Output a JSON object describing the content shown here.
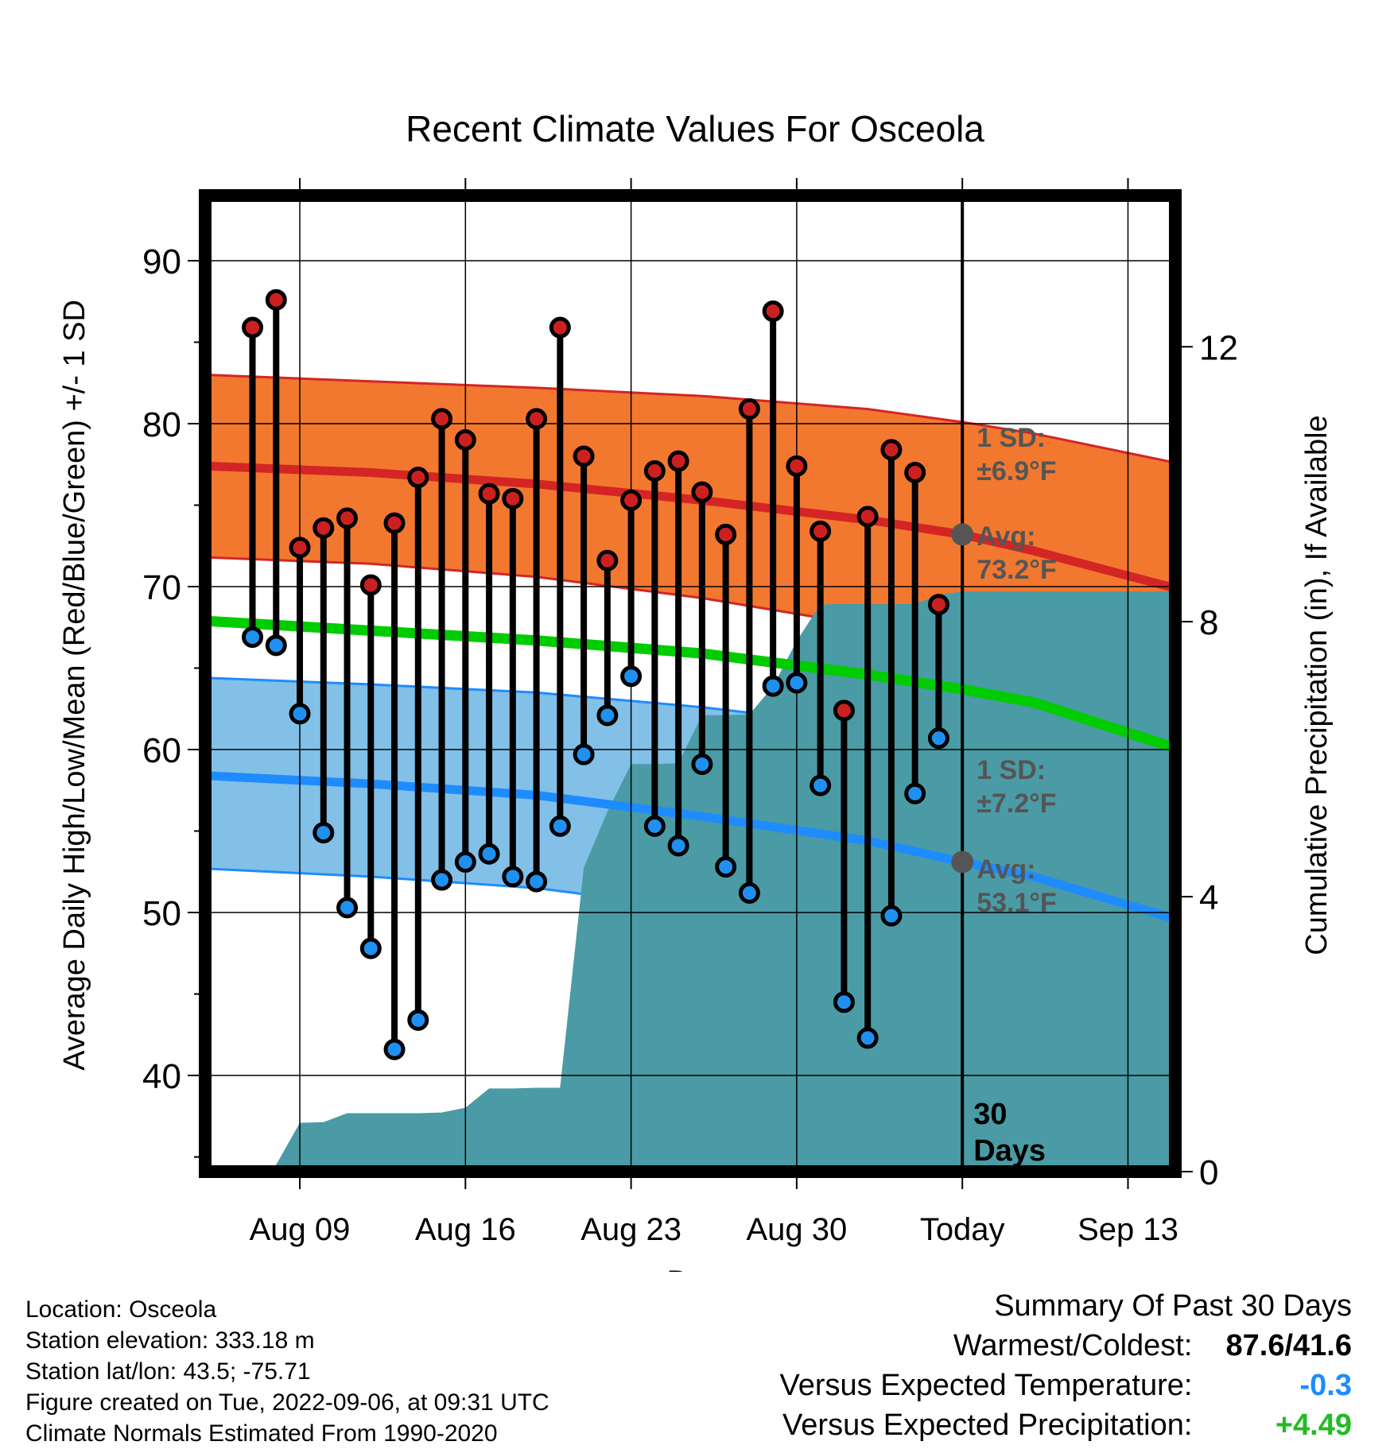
{
  "chart_data": {
    "type": "line",
    "title": "Recent Climate Values For Osceola",
    "xlabel": "Day",
    "ylabel": "Average Daily High/Low/Mean (Red/Blue/Green) +/- 1 SD",
    "y2label": "Cumulative Precipitation (in), If Available",
    "ylim": [
      34.1,
      94.0
    ],
    "y2lim": [
      0,
      14.2
    ],
    "y_ticks": [
      40,
      50,
      60,
      70,
      80,
      90
    ],
    "y2_ticks": [
      0,
      4,
      8,
      12
    ],
    "x_ticks": [
      {
        "label": "Aug 09",
        "date": "2022-08-09"
      },
      {
        "label": "Aug 16",
        "date": "2022-08-16"
      },
      {
        "label": "Aug 23",
        "date": "2022-08-23"
      },
      {
        "label": "Aug 30",
        "date": "2022-08-30"
      },
      {
        "label": "Today",
        "date": "2022-09-06"
      },
      {
        "label": "Sep 13",
        "date": "2022-09-13"
      }
    ],
    "xlim": [
      "2022-08-05",
      "2022-09-15"
    ],
    "today": "2022-09-06",
    "today_label": "30 Days",
    "grid": true,
    "dates": [
      "2022-08-07",
      "2022-08-08",
      "2022-08-09",
      "2022-08-10",
      "2022-08-11",
      "2022-08-12",
      "2022-08-13",
      "2022-08-14",
      "2022-08-15",
      "2022-08-16",
      "2022-08-17",
      "2022-08-18",
      "2022-08-19",
      "2022-08-20",
      "2022-08-21",
      "2022-08-22",
      "2022-08-23",
      "2022-08-24",
      "2022-08-25",
      "2022-08-26",
      "2022-08-27",
      "2022-08-28",
      "2022-08-29",
      "2022-08-30",
      "2022-08-31",
      "2022-09-01",
      "2022-09-02",
      "2022-09-03",
      "2022-09-04",
      "2022-09-05"
    ],
    "daily_high": [
      85.9,
      87.6,
      72.4,
      73.6,
      74.2,
      70.1,
      73.9,
      76.7,
      80.3,
      79.0,
      75.7,
      75.4,
      80.3,
      85.9,
      78.0,
      71.6,
      75.3,
      77.1,
      77.7,
      75.8,
      73.2,
      80.9,
      86.9,
      77.4,
      73.4,
      62.4,
      74.3,
      78.4,
      77.0,
      68.9
    ],
    "daily_low": [
      66.9,
      66.4,
      62.2,
      54.9,
      50.3,
      47.8,
      41.6,
      43.4,
      52.0,
      53.1,
      53.6,
      52.2,
      51.9,
      55.3,
      59.7,
      62.1,
      64.5,
      55.3,
      54.1,
      59.1,
      52.8,
      51.2,
      63.9,
      64.1,
      57.8,
      44.5,
      42.3,
      49.8,
      57.3,
      60.7
    ],
    "normal_high": {
      "dates": [
        "2022-08-05",
        "2022-08-12",
        "2022-08-19",
        "2022-08-26",
        "2022-09-02",
        "2022-09-06",
        "2022-09-09",
        "2022-09-15"
      ],
      "avg": [
        77.4,
        77.0,
        76.3,
        75.3,
        74.1,
        73.2,
        72.2,
        69.9
      ],
      "upper": [
        83.0,
        82.6,
        82.2,
        81.7,
        80.9,
        80.1,
        79.4,
        77.6
      ],
      "lower": [
        71.8,
        71.4,
        70.6,
        69.3,
        67.6,
        66.6,
        65.5,
        62.7
      ]
    },
    "normal_mean": {
      "dates": [
        "2022-08-05",
        "2022-08-12",
        "2022-08-19",
        "2022-08-26",
        "2022-09-02",
        "2022-09-06",
        "2022-09-09",
        "2022-09-15"
      ],
      "avg": [
        67.9,
        67.3,
        66.7,
        65.9,
        64.6,
        63.7,
        62.9,
        60.1
      ]
    },
    "normal_low": {
      "dates": [
        "2022-08-05",
        "2022-08-12",
        "2022-08-19",
        "2022-08-26",
        "2022-09-02",
        "2022-09-06",
        "2022-09-09",
        "2022-09-15"
      ],
      "avg": [
        58.4,
        57.9,
        57.2,
        55.9,
        54.4,
        53.1,
        52.2,
        49.6
      ],
      "upper": [
        64.4,
        64.0,
        63.5,
        62.6,
        61.4,
        60.3,
        59.6,
        57.6
      ],
      "lower": [
        52.7,
        52.2,
        51.5,
        50.2,
        48.1,
        46.8,
        45.6,
        42.0
      ]
    },
    "precip_cumulative": {
      "dates": [
        "2022-08-07",
        "2022-08-08",
        "2022-08-09",
        "2022-08-10",
        "2022-08-11",
        "2022-08-12",
        "2022-08-13",
        "2022-08-14",
        "2022-08-15",
        "2022-08-16",
        "2022-08-17",
        "2022-08-18",
        "2022-08-19",
        "2022-08-20",
        "2022-08-21",
        "2022-08-22",
        "2022-08-23",
        "2022-08-24",
        "2022-08-25",
        "2022-08-26",
        "2022-08-27",
        "2022-08-28",
        "2022-08-29",
        "2022-08-30",
        "2022-08-31",
        "2022-09-01",
        "2022-09-02",
        "2022-09-03",
        "2022-09-04",
        "2022-09-05",
        "2022-09-06",
        "2022-09-15"
      ],
      "values": [
        0.0,
        0.1,
        0.71,
        0.72,
        0.85,
        0.85,
        0.85,
        0.85,
        0.86,
        0.93,
        1.21,
        1.21,
        1.22,
        1.22,
        4.42,
        5.24,
        5.93,
        5.93,
        5.94,
        6.64,
        6.64,
        6.65,
        7.06,
        7.72,
        8.25,
        8.26,
        8.26,
        8.26,
        8.26,
        8.39,
        8.44,
        8.44
      ]
    },
    "annotations": {
      "high_sd": [
        "1 SD:",
        "±6.9°F"
      ],
      "high_avg": [
        "Avg:",
        "73.2°F"
      ],
      "low_sd": [
        "1 SD:",
        "±7.2°F"
      ],
      "low_avg": [
        "Avg:",
        "53.1°F"
      ]
    },
    "colors": {
      "high_band": "#f27830",
      "high_line": "#d42525",
      "high_edge": "#d42525",
      "mean_line": "#00cc00",
      "low_band": "#82c0e8",
      "low_line": "#1e8cff",
      "low_edge": "#1e8cff",
      "precip": "#4a9ba5",
      "high_marker": "#cc2020",
      "low_marker": "#2090f0",
      "annotation": "#555555"
    }
  },
  "info": {
    "location": "Location: Osceola",
    "elevation": "Station elevation: 333.18 m",
    "latlon": "Station lat/lon: 43.5; -75.71",
    "created": "Figure created on Tue, 2022-09-06, at 09:31 UTC",
    "normals": "Climate Normals Estimated From 1990-2020"
  },
  "summary": {
    "heading": "Summary Of Past 30 Days",
    "warm_cold_label": "Warmest/Coldest:",
    "warm_cold_value": "87.6/41.6",
    "temp_label": "Versus Expected Temperature:",
    "temp_value": "-0.3",
    "temp_color": "#1e8cff",
    "precip_label": "Versus Expected Precipitation:",
    "precip_value": "+4.49",
    "precip_color": "#22bb22"
  }
}
